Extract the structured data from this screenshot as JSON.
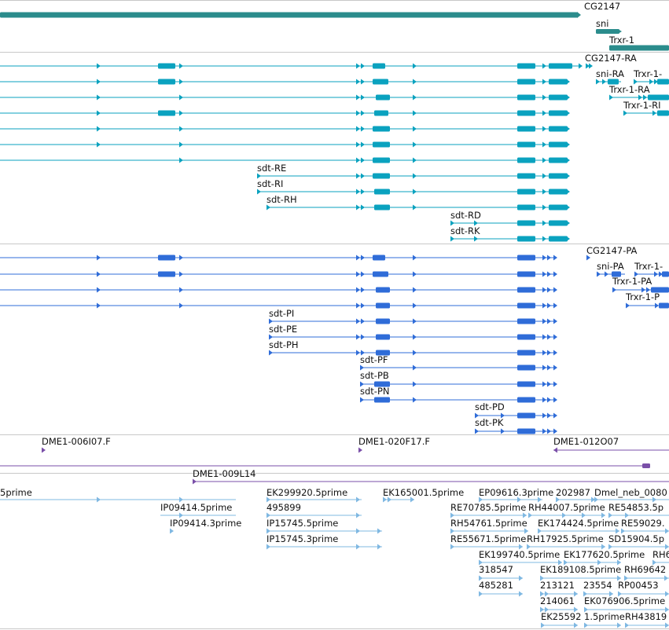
{
  "colors": {
    "gene": "#2b8c8c",
    "mrna": "#0aa2bf",
    "protein": "#2f6cd8",
    "clone": "#7a4fa8",
    "est": "#7fb8e2",
    "divider": "#c8c8c8"
  },
  "glyphs": {
    "forward": "arrow-right-icon",
    "reverse": "arrow-left-icon"
  },
  "tracks": [
    {
      "name": "genes",
      "features": [
        {
          "label": "CG2147"
        },
        {
          "label": "sni"
        },
        {
          "label": "Trxr-1"
        }
      ]
    },
    {
      "name": "transcripts",
      "features": [
        {
          "label": "CG2147-RA"
        },
        {
          "label": "sni-RA"
        },
        {
          "label": "Trxr-1-"
        },
        {
          "label": "Trxr-1-RA"
        },
        {
          "label": "Trxr-1-RI"
        },
        {
          "label": "sdt-RE"
        },
        {
          "label": "sdt-RI"
        },
        {
          "label": "sdt-RH"
        },
        {
          "label": "sdt-RD"
        },
        {
          "label": "sdt-RK"
        }
      ]
    },
    {
      "name": "proteins",
      "features": [
        {
          "label": "CG2147-PA"
        },
        {
          "label": "sni-PA"
        },
        {
          "label": "Trxr-1-"
        },
        {
          "label": "Trxr-1-PA"
        },
        {
          "label": "Trxr-1-P"
        },
        {
          "label": "sdt-PI"
        },
        {
          "label": "sdt-PE"
        },
        {
          "label": "sdt-PH"
        },
        {
          "label": "sdt-PF"
        },
        {
          "label": "sdt-PB"
        },
        {
          "label": "sdt-PN"
        },
        {
          "label": "sdt-PD"
        },
        {
          "label": "sdt-PK"
        }
      ]
    },
    {
      "name": "clones",
      "features": [
        {
          "label": "DME1-006I07.F"
        },
        {
          "label": "DME1-020F17.F"
        },
        {
          "label": "DME1-012O07"
        },
        {
          "label": "DME1-009L14"
        }
      ]
    },
    {
      "name": "ests",
      "features": [
        {
          "label": "5prime"
        },
        {
          "label": "IP09414.5prime"
        },
        {
          "label": "IP09414.3prime"
        },
        {
          "label": "EK299920.5prime"
        },
        {
          "label": "495899"
        },
        {
          "label": "IP15745.5prime"
        },
        {
          "label": "IP15745.3prime"
        },
        {
          "label": "EK165001.5prime"
        },
        {
          "label": "EP09616.3prime"
        },
        {
          "label": "202987"
        },
        {
          "label": "Dmel_neb_0080"
        },
        {
          "label": "RE70785.5prime"
        },
        {
          "label": "RH44007.5prime"
        },
        {
          "label": "RE54853.5p"
        },
        {
          "label": "RH54761.5prime"
        },
        {
          "label": "EK174424.5prime"
        },
        {
          "label": "RE59029."
        },
        {
          "label": "RE55671.5prime"
        },
        {
          "label": "RH17925.5prime"
        },
        {
          "label": "SD15904.5p"
        },
        {
          "label": "EK199740.5prime"
        },
        {
          "label": "EK177620.5prime"
        },
        {
          "label": "RH6"
        },
        {
          "label": "318547"
        },
        {
          "label": "EK189108.5prime"
        },
        {
          "label": "RH69642"
        },
        {
          "label": "485281"
        },
        {
          "label": "213121"
        },
        {
          "label": "23554"
        },
        {
          "label": "RP00453"
        },
        {
          "label": "214061"
        },
        {
          "label": "EK076906.5prime"
        },
        {
          "label": "EK25592"
        },
        {
          "label": "1.5prime"
        },
        {
          "label": "RH43819"
        }
      ]
    }
  ]
}
